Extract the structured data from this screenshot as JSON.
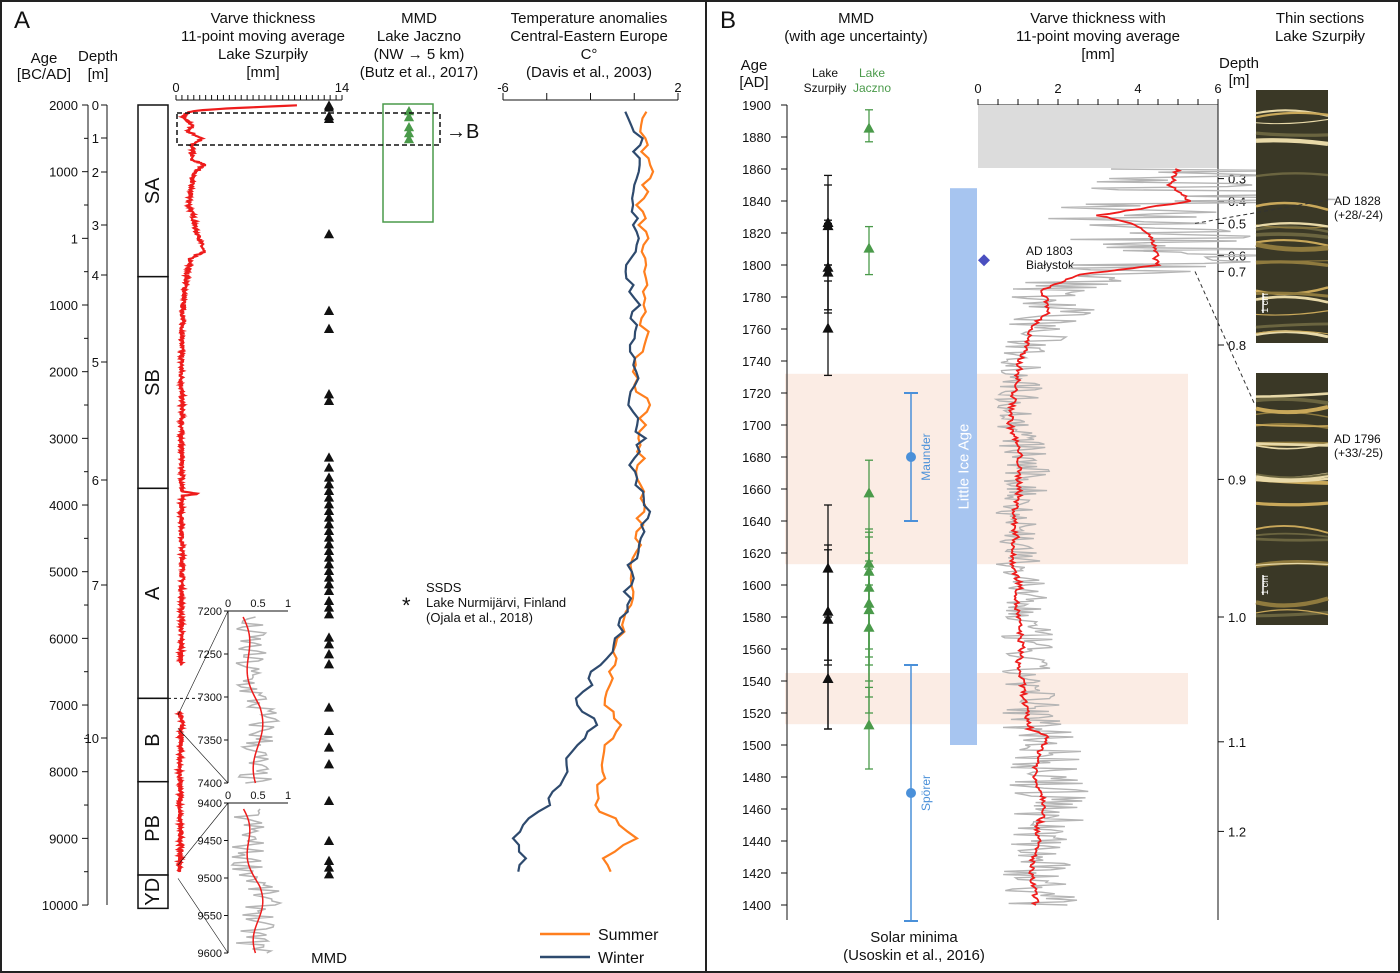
{
  "panel_a": {
    "label": "A",
    "age_header": [
      "Age",
      "[BC/AD]"
    ],
    "depth_header": [
      "Depth",
      "[m]"
    ],
    "age_ticks": [
      "2000",
      "1000",
      "1",
      "1000",
      "2000",
      "3000",
      "4000",
      "5000",
      "6000",
      "7000",
      "8000",
      "9000",
      "10000"
    ],
    "depth_ticks": [
      {
        "label": "0",
        "depth": 0
      },
      {
        "label": "1",
        "depth": 1
      },
      {
        "label": "2",
        "depth": 2
      },
      {
        "label": "3",
        "depth": 3
      },
      {
        "label": "4",
        "depth": 4
      },
      {
        "label": "5",
        "depth": 5
      },
      {
        "label": "6",
        "depth": 6
      },
      {
        "label": "7",
        "depth": 7
      },
      {
        "label": "10",
        "depth": 10
      }
    ],
    "zones": [
      {
        "label": "SA",
        "from": 2000,
        "to": -575
      },
      {
        "label": "SB",
        "from": -575,
        "to": -3750
      },
      {
        "label": "A",
        "from": -3750,
        "to": -6900
      },
      {
        "label": "B",
        "from": -6900,
        "to": -8150
      },
      {
        "label": "PB",
        "from": -8150,
        "to": -9550
      },
      {
        "label": "YD",
        "from": -9550,
        "to": -10050
      }
    ],
    "varve_title": [
      "Varve thickness",
      "11-point moving average",
      "Lake Szurpiły",
      "[mm]"
    ],
    "varve_axis": {
      "min": 0,
      "max": 14,
      "tick_labels": [
        "0",
        "14"
      ]
    },
    "mmd_jaczno_title": [
      "MMD",
      "Lake Jaczno",
      "(NW → 5 km)",
      "(Butz et al., 2017)"
    ],
    "temp_title": [
      "Temperature anomalies",
      "Central-Eastern Europe",
      "C°",
      "(Davis et al., 2003)"
    ],
    "temp_axis": {
      "min": -6,
      "max": 2,
      "tick_labels": [
        "-6",
        "2"
      ]
    },
    "arrow_label": "→B",
    "mmd_label": "MMD",
    "ssds": {
      "symbol": "*",
      "lines": [
        "SSDS",
        "Lake Nurmijärvi, Finland",
        "(Ojala et al., 2018)"
      ],
      "age": -5500
    },
    "legend": [
      {
        "name": "Summer",
        "color": "#ff7f1e"
      },
      {
        "name": "Winter",
        "color": "#2e4a6e"
      }
    ],
    "inset1": {
      "y_ticks": [
        "7200",
        "7250",
        "7300",
        "7350",
        "7400"
      ],
      "x_ticks": [
        "0",
        "0.5",
        "1"
      ]
    },
    "inset2": {
      "y_ticks": [
        "9400",
        "9450",
        "9500",
        "9550",
        "9600"
      ],
      "x_ticks": [
        "0",
        "0.5",
        "1"
      ]
    }
  },
  "panel_b": {
    "label": "B",
    "mmd_title": [
      "MMD",
      "(with age uncertainty)"
    ],
    "age_header": [
      "Age",
      "[AD]"
    ],
    "lake1": [
      "Lake",
      "Szurpiły"
    ],
    "lake2": [
      "Lake",
      "Jaczno"
    ],
    "varve_title": [
      "Varve thickness with",
      "11-point moving average",
      "[mm]"
    ],
    "varve_axis": {
      "min": 0,
      "max": 6,
      "tick_labels": [
        "0",
        "2",
        "4",
        "6"
      ]
    },
    "thin_title": [
      "Thin sections",
      "Lake Szurpiły"
    ],
    "depth_header": [
      "Depth",
      "[m]"
    ],
    "age_ticks": [
      "1900",
      "1880",
      "1860",
      "1840",
      "1820",
      "1800",
      "1780",
      "1760",
      "1740",
      "1720",
      "1700",
      "1680",
      "1660",
      "1640",
      "1620",
      "1600",
      "1580",
      "1560",
      "1540",
      "1520",
      "1500",
      "1480",
      "1460",
      "1440",
      "1420",
      "1400"
    ],
    "depth_ticks": [
      {
        "label": "0.3",
        "year": 1854
      },
      {
        "label": "0.4",
        "year": 1840
      },
      {
        "label": "0.5",
        "year": 1826
      },
      {
        "label": "0.6",
        "year": 1806
      },
      {
        "label": "0.7",
        "year": 1796
      },
      {
        "label": "0.8",
        "year": 1750
      },
      {
        "label": "0.9",
        "year": 1666
      },
      {
        "label": "1.0",
        "year": 1580
      },
      {
        "label": "1.1",
        "year": 1502
      },
      {
        "label": "1.2",
        "year": 1446
      }
    ],
    "little_ice_age": {
      "label": "Little Ice Age",
      "from": 1848,
      "to": 1500,
      "color": "#a7c5f0"
    },
    "solar_minima": [
      {
        "name": "Maunder",
        "from": 1640,
        "to": 1720,
        "center": 1680
      },
      {
        "name": "Spörer",
        "from": 1390,
        "to": 1550,
        "center": 1470
      }
    ],
    "solar_label": [
      "Solar minima",
      "(Usoskin et al., 2016)"
    ],
    "shaded_periods": [
      {
        "from": 1613,
        "to": 1732
      },
      {
        "from": 1513,
        "to": 1545
      }
    ],
    "bialystok": {
      "year": 1803,
      "lines": [
        "AD 1803",
        "Białystok"
      ],
      "color": "#4a4fc0"
    },
    "thin_sections": [
      {
        "lines": [
          "AD 1828",
          "(+28/-24)"
        ],
        "scale": "1 cm"
      },
      {
        "lines": [
          "AD 1796",
          "(+33/-25)"
        ],
        "scale": "1 cm"
      }
    ]
  },
  "colors": {
    "varve_ma": "#ee1c1c",
    "varve_raw": "#b5b5b5",
    "jaczno": "#4a9a4a",
    "solar": "#4a90d9",
    "shade": "#fbece4"
  },
  "chart_data": [
    {
      "type": "line",
      "title": "Varve thickness 11-point moving average Lake Szurpiły [mm]",
      "x_unit": "mm",
      "xlim": [
        0,
        14
      ],
      "y": "age (AD positive, BC negative)",
      "ylim": [
        2000,
        -10000
      ],
      "series": [
        {
          "ages": [
            1995,
            1970,
            1950,
            1920,
            1900,
            1850,
            1800,
            1700,
            1600,
            1500,
            1400,
            1300,
            1200,
            1100,
            1000,
            900,
            700,
            500,
            300,
            100,
            1,
            -200,
            -300,
            -500,
            -800,
            -1000,
            -1500,
            -2000,
            -2500,
            -3000,
            -3500,
            -3800,
            -3830,
            -3860,
            -4000,
            -4500,
            -5000,
            -5500,
            -6000,
            -6400
          ],
          "values": [
            10.2,
            7,
            4.5,
            2,
            1.2,
            0.7,
            0.6,
            1.4,
            1.0,
            2.2,
            1.3,
            1.5,
            1.2,
            2.4,
            1.6,
            1.4,
            1.2,
            1.1,
            1.5,
            1.7,
            2.0,
            2.3,
            1.2,
            1.0,
            0.7,
            0.6,
            0.5,
            0.45,
            0.5,
            0.45,
            0.5,
            0.5,
            1.9,
            0.5,
            0.45,
            0.5,
            0.55,
            0.45,
            0.45,
            0.4
          ]
        },
        {
          "ages": [
            -7100,
            -7300,
            -7500,
            -7800,
            -8000,
            -8300,
            -8600,
            -9000,
            -9300,
            -9500
          ],
          "values": [
            0.3,
            0.5,
            0.4,
            0.35,
            0.3,
            0.35,
            0.3,
            0.4,
            0.35,
            0.3
          ]
        }
      ]
    },
    {
      "type": "scatter",
      "title": "MMD Lake Szurpiły",
      "ages": [
        1980,
        1950,
        1820,
        1780,
        50,
        -1100,
        -1370,
        -2350,
        -2450,
        -3300,
        -3450,
        -3600,
        -3700,
        -3800,
        -3900,
        -4000,
        -4100,
        -4200,
        -4300,
        -4400,
        -4500,
        -4600,
        -4700,
        -4800,
        -4900,
        -5000,
        -5100,
        -5200,
        -5300,
        -5450,
        -5550,
        -5650,
        -6000,
        -6100,
        -6250,
        -6400,
        -7050,
        -7400,
        -7650,
        -7900,
        -8450,
        -9050,
        -9350,
        -9450,
        -9550
      ]
    },
    {
      "type": "scatter",
      "title": "MMD Lake Jaczno",
      "ages": [
        1885,
        1810,
        1657,
        1613,
        1598,
        1588,
        1584,
        1573,
        1512
      ]
    },
    {
      "type": "line",
      "title": "Temperature anomalies Central-Eastern Europe C°",
      "xlim": [
        -6,
        2
      ],
      "ages": [
        1900,
        1500,
        1000,
        500,
        1,
        -500,
        -1000,
        -1500,
        -2000,
        -2500,
        -3000,
        -3500,
        -4000,
        -4500,
        -5000,
        -5500,
        -6000,
        -6500,
        -7000,
        -7300,
        -7600,
        -8000,
        -8500,
        -9000,
        -9300,
        -9500
      ],
      "series": [
        {
          "name": "Summer",
          "values": [
            0.6,
            0.3,
            0.8,
            0.2,
            0.5,
            0.3,
            0.6,
            0.4,
            -0.1,
            0.5,
            0.2,
            0.3,
            0.4,
            0.2,
            0.0,
            -0.2,
            -0.6,
            -1.0,
            -1.2,
            -0.8,
            -1.2,
            -1.4,
            -1.8,
            0.2,
            -1.5,
            -1.2
          ]
        },
        {
          "name": "Winter",
          "values": [
            -0.2,
            0.2,
            0.0,
            -0.2,
            0.3,
            -0.3,
            0.1,
            -0.2,
            0.2,
            -0.2,
            0.4,
            -0.1,
            0.6,
            0.3,
            -0.2,
            -0.4,
            -0.8,
            -1.8,
            -2.6,
            -1.6,
            -2.6,
            -3.2,
            -4.0,
            -5.6,
            -5.0,
            -5.2
          ]
        }
      ]
    },
    {
      "type": "line",
      "title": "Varve thickness with 11-point moving average [mm]",
      "xlim": [
        0,
        6
      ],
      "ylim": [
        1900,
        1400
      ],
      "years": [
        1860,
        1850,
        1840,
        1831,
        1825,
        1819,
        1810,
        1800,
        1794,
        1784,
        1772,
        1765,
        1759,
        1750,
        1740,
        1730,
        1720,
        1710,
        1700,
        1690,
        1680,
        1670,
        1660,
        1650,
        1640,
        1630,
        1620,
        1610,
        1600,
        1590,
        1580,
        1570,
        1560,
        1550,
        1540,
        1530,
        1520,
        1510,
        1505,
        1500,
        1490,
        1480,
        1470,
        1460,
        1450,
        1440,
        1430,
        1420,
        1410,
        1400
      ],
      "values": [
        5.0,
        4.8,
        5.3,
        3.0,
        4.0,
        4.3,
        4.4,
        4.5,
        2.5,
        1.6,
        1.8,
        1.5,
        1.3,
        1.2,
        1.05,
        1.0,
        0.9,
        0.85,
        0.8,
        0.95,
        1.05,
        1.0,
        1.05,
        0.95,
        0.9,
        0.95,
        0.85,
        0.9,
        1.05,
        0.95,
        1.0,
        1.05,
        1.1,
        1.0,
        1.1,
        1.15,
        1.2,
        1.3,
        1.8,
        1.6,
        1.5,
        1.4,
        1.6,
        1.7,
        1.5,
        1.5,
        1.4,
        1.3,
        1.4,
        1.45
      ]
    },
    {
      "type": "scatter",
      "title": "MMD (with age uncertainty)",
      "series": [
        {
          "name": "Lake Szurpiły",
          "points": [
            {
              "year": 1826,
              "lo": 1800,
              "hi": 1856
            },
            {
              "year": 1824,
              "lo": 1800,
              "hi": 1850
            },
            {
              "year": 1798,
              "lo": 1772,
              "hi": 1828
            },
            {
              "year": 1795,
              "lo": 1770,
              "hi": 1826
            },
            {
              "year": 1760,
              "lo": 1731,
              "hi": 1790
            },
            {
              "year": 1610,
              "lo": 1553,
              "hi": 1650
            },
            {
              "year": 1583,
              "lo": 1550,
              "hi": 1625
            },
            {
              "year": 1578,
              "lo": 1510,
              "hi": 1622
            },
            {
              "year": 1541,
              "lo": 1510,
              "hi": 1580
            }
          ]
        },
        {
          "name": "Lake Jaczno",
          "points": [
            {
              "year": 1885,
              "lo": 1877,
              "hi": 1897
            },
            {
              "year": 1810,
              "lo": 1794,
              "hi": 1824
            },
            {
              "year": 1657,
              "lo": 1600,
              "hi": 1678
            },
            {
              "year": 1613,
              "lo": 1560,
              "hi": 1633
            },
            {
              "year": 1608,
              "lo": 1555,
              "hi": 1635
            },
            {
              "year": 1598,
              "lo": 1550,
              "hi": 1630
            },
            {
              "year": 1588,
              "lo": 1540,
              "hi": 1620
            },
            {
              "year": 1584,
              "lo": 1530,
              "hi": 1615
            },
            {
              "year": 1573,
              "lo": 1520,
              "hi": 1610
            },
            {
              "year": 1512,
              "lo": 1485,
              "hi": 1536
            }
          ]
        }
      ]
    }
  ]
}
